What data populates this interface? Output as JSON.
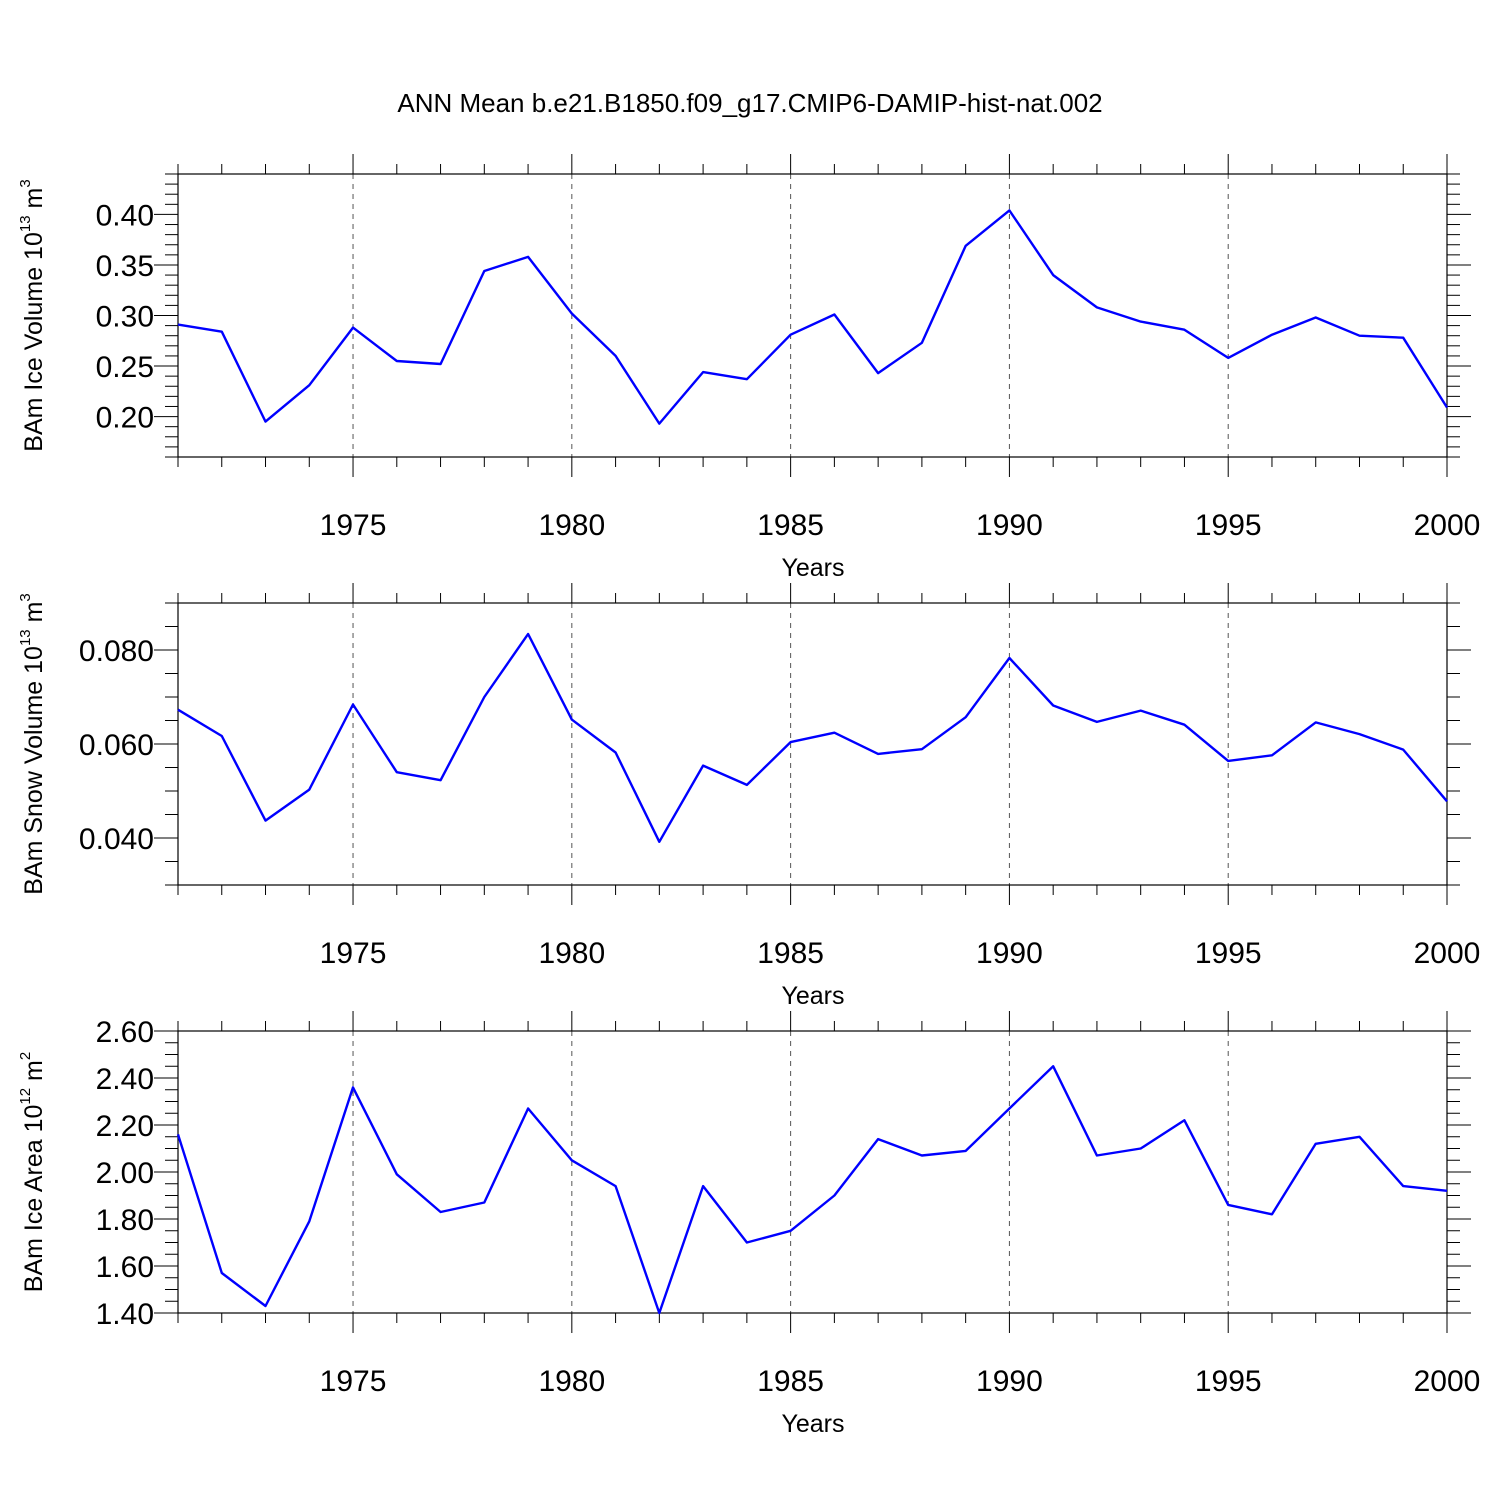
{
  "title": "ANN Mean b.e21.B1850.f09_g17.CMIP6-DAMIP-hist-nat.002",
  "colors": {
    "series": "#0000ff",
    "grid": "#555555",
    "axis": "#000000"
  },
  "chart_data": [
    {
      "type": "line",
      "xlabel": "Years",
      "ylabel": {
        "base": "BAm Ice Volume 10",
        "exp": "13",
        "unit": " m",
        "unit_exp": "3"
      },
      "xlim": [
        1971,
        2000
      ],
      "ylim": [
        0.16,
        0.44
      ],
      "yticks": [
        0.2,
        0.25,
        0.3,
        0.35,
        0.4
      ],
      "ytick_labels": [
        "0.20",
        "0.25",
        "0.30",
        "0.35",
        "0.40"
      ],
      "yminor_step": 0.01,
      "xticks": [
        1975,
        1980,
        1985,
        1990,
        1995,
        2000
      ],
      "xtick_labels": [
        "1975",
        "1980",
        "1985",
        "1990",
        "1995",
        "2000"
      ],
      "grid": "vertical dashed at major x ticks",
      "x": [
        1971,
        1972,
        1973,
        1974,
        1975,
        1976,
        1977,
        1978,
        1979,
        1980,
        1981,
        1982,
        1983,
        1984,
        1985,
        1986,
        1987,
        1988,
        1989,
        1990,
        1991,
        1992,
        1993,
        1994,
        1995,
        1996,
        1997,
        1998,
        1999,
        2000
      ],
      "values": [
        0.291,
        0.284,
        0.195,
        0.231,
        0.288,
        0.255,
        0.252,
        0.344,
        0.358,
        0.302,
        0.26,
        0.193,
        0.244,
        0.237,
        0.281,
        0.301,
        0.243,
        0.273,
        0.369,
        0.404,
        0.34,
        0.308,
        0.294,
        0.286,
        0.258,
        0.281,
        0.298,
        0.28,
        0.278,
        0.209
      ]
    },
    {
      "type": "line",
      "xlabel": "Years",
      "ylabel": {
        "base": "BAm Snow Volume 10",
        "exp": "13",
        "unit": " m",
        "unit_exp": "3"
      },
      "xlim": [
        1971,
        2000
      ],
      "ylim": [
        0.03,
        0.09
      ],
      "yticks": [
        0.04,
        0.06,
        0.08
      ],
      "ytick_labels": [
        "0.040",
        "0.060",
        "0.080"
      ],
      "yminor_step": 0.005,
      "xticks": [
        1975,
        1980,
        1985,
        1990,
        1995,
        2000
      ],
      "xtick_labels": [
        "1975",
        "1980",
        "1985",
        "1990",
        "1995",
        "2000"
      ],
      "grid": "vertical dashed at major x ticks",
      "x": [
        1971,
        1972,
        1973,
        1974,
        1975,
        1976,
        1977,
        1978,
        1979,
        1980,
        1981,
        1982,
        1983,
        1984,
        1985,
        1986,
        1987,
        1988,
        1989,
        1990,
        1991,
        1992,
        1993,
        1994,
        1995,
        1996,
        1997,
        1998,
        1999,
        2000
      ],
      "values": [
        0.0673,
        0.0617,
        0.0437,
        0.0503,
        0.0684,
        0.054,
        0.0523,
        0.07,
        0.0834,
        0.0652,
        0.0582,
        0.0392,
        0.0554,
        0.0513,
        0.0604,
        0.0624,
        0.0579,
        0.0589,
        0.0657,
        0.0783,
        0.0682,
        0.0647,
        0.0671,
        0.0641,
        0.0564,
        0.0576,
        0.0646,
        0.0621,
        0.0588,
        0.0478
      ]
    },
    {
      "type": "line",
      "xlabel": "Years",
      "ylabel": {
        "base": "BAm Ice Area 10",
        "exp": "12",
        "unit": " m",
        "unit_exp": "2"
      },
      "xlim": [
        1971,
        2000
      ],
      "ylim": [
        1.4,
        2.6
      ],
      "yticks": [
        1.4,
        1.6,
        1.8,
        2.0,
        2.2,
        2.4,
        2.6
      ],
      "ytick_labels": [
        "1.40",
        "1.60",
        "1.80",
        "2.00",
        "2.20",
        "2.40",
        "2.60"
      ],
      "yminor_step": 0.05,
      "xticks": [
        1975,
        1980,
        1985,
        1990,
        1995,
        2000
      ],
      "xtick_labels": [
        "1975",
        "1980",
        "1985",
        "1990",
        "1995",
        "2000"
      ],
      "grid": "vertical dashed at major x ticks",
      "x": [
        1971,
        1972,
        1973,
        1974,
        1975,
        1976,
        1977,
        1978,
        1979,
        1980,
        1981,
        1982,
        1983,
        1984,
        1985,
        1986,
        1987,
        1988,
        1989,
        1990,
        1991,
        1992,
        1993,
        1994,
        1995,
        1996,
        1997,
        1998,
        1999,
        2000
      ],
      "values": [
        2.16,
        1.57,
        1.43,
        1.79,
        2.36,
        1.99,
        1.83,
        1.87,
        2.27,
        2.05,
        1.94,
        1.4,
        1.94,
        1.7,
        1.75,
        1.9,
        2.14,
        2.07,
        2.09,
        2.27,
        2.45,
        2.07,
        2.1,
        2.22,
        1.86,
        1.82,
        2.12,
        2.15,
        1.94,
        1.92
      ]
    }
  ]
}
